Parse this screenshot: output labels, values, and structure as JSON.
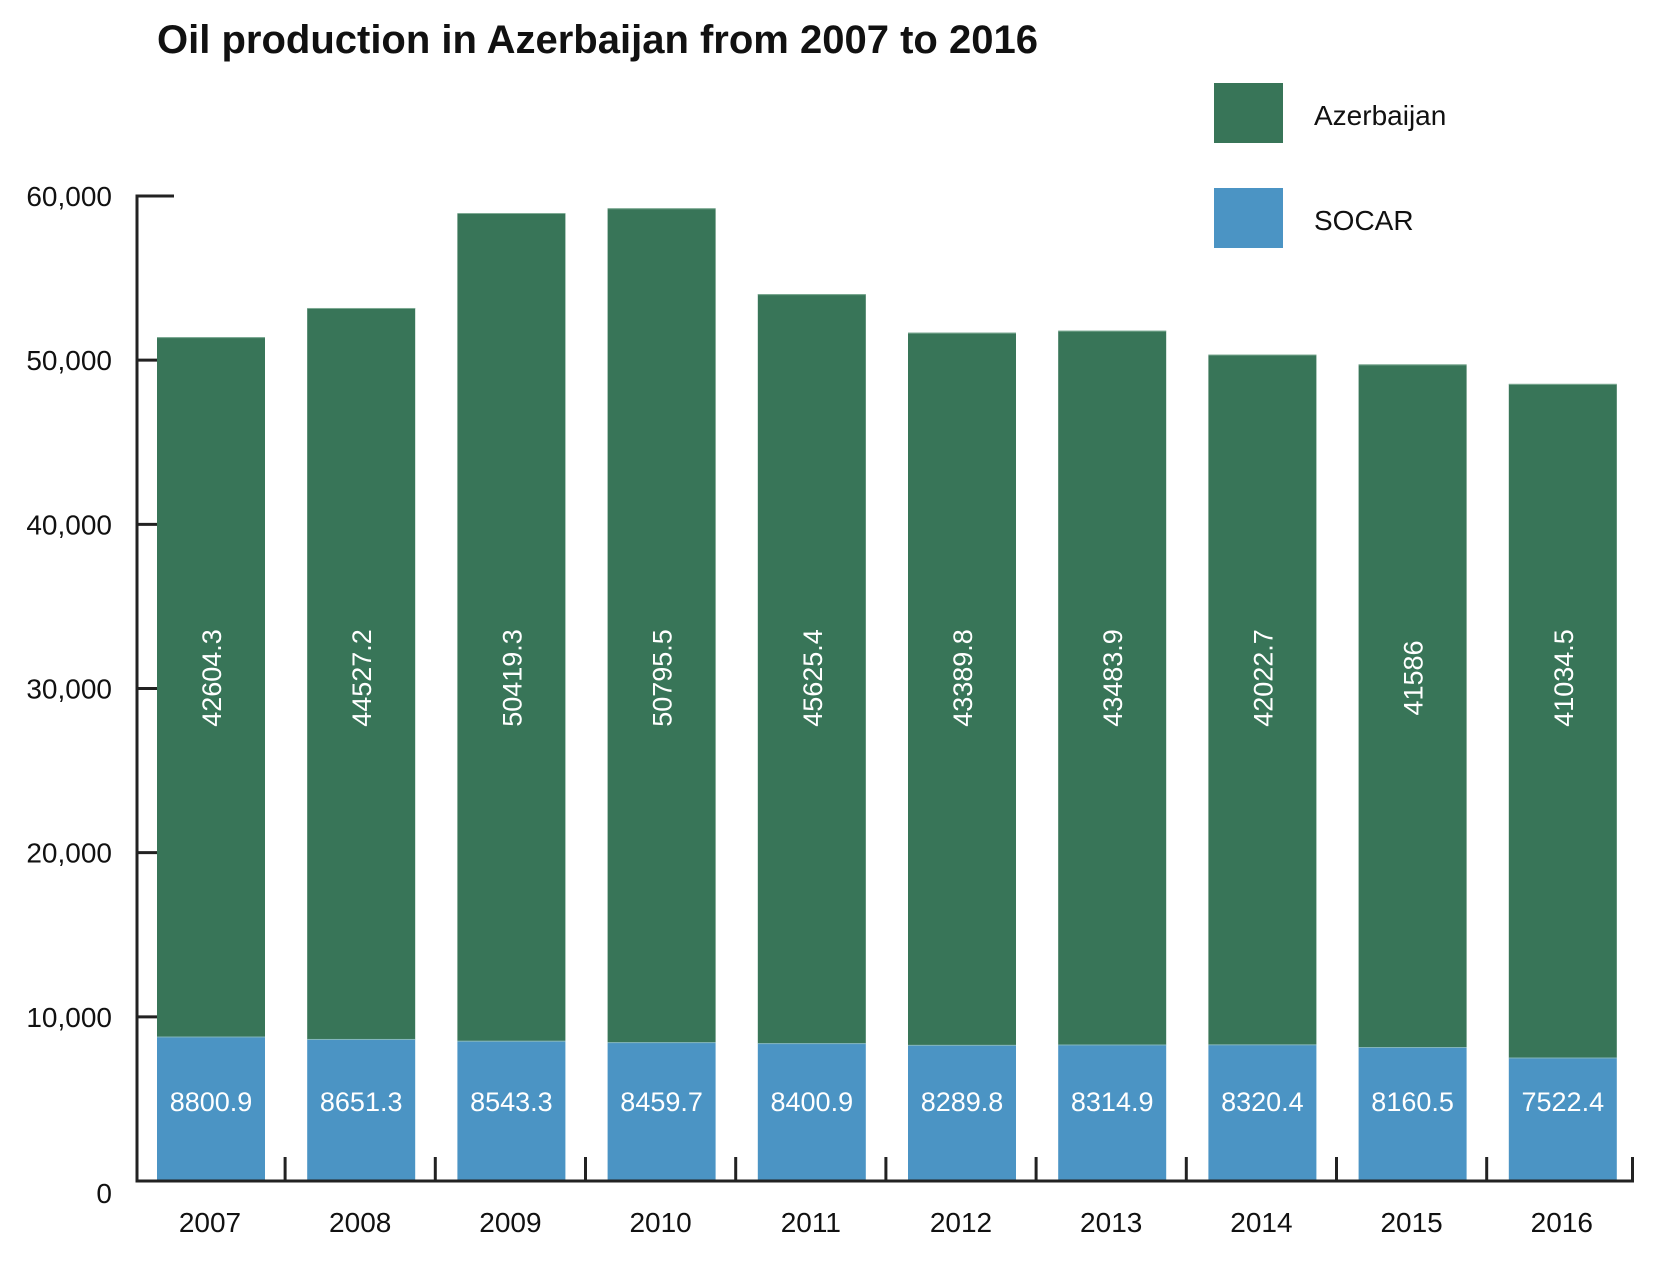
{
  "chart_data": {
    "type": "bar",
    "stacked": true,
    "title": "Oil production in Azerbaijan from 2007 to 2016",
    "xlabel": "",
    "ylabel": "",
    "categories": [
      "2007",
      "2008",
      "2009",
      "2010",
      "2011",
      "2012",
      "2013",
      "2014",
      "2015",
      "2016"
    ],
    "series": [
      {
        "name": "SOCAR",
        "color": "#4b94c4",
        "values": [
          8800.9,
          8651.3,
          8543.3,
          8459.7,
          8400.9,
          8289.8,
          8314.9,
          8320.4,
          8160.5,
          7522.4
        ],
        "labels": [
          "8800.9",
          "8651.3",
          "8543.3",
          "8459.7",
          "8400.9",
          "8289.8",
          "8314.9",
          "8320.4",
          "8160.5",
          "7522.4"
        ]
      },
      {
        "name": "Azerbaijan",
        "color": "#387558",
        "values": [
          42604.3,
          44527.2,
          50419.3,
          50795.5,
          45625.4,
          43389.8,
          43483.9,
          42022.7,
          41586,
          41034.5
        ],
        "labels": [
          "42604.3",
          "44527.2",
          "50419.3",
          "50795.5",
          "45625.4",
          "43389.8",
          "43483.9",
          "42022.7",
          "41586",
          "41034.5"
        ]
      }
    ],
    "ylim": [
      0,
      60000
    ],
    "yticks": [
      0,
      10000,
      20000,
      30000,
      40000,
      50000,
      60000
    ],
    "ytick_labels": [
      "0",
      "10,000",
      "20,000",
      "30,000",
      "40,000",
      "50,000",
      "60,000"
    ],
    "grid": false,
    "legend": {
      "position": "top-right",
      "entries": [
        {
          "name": "Azerbaijan",
          "color": "#387558"
        },
        {
          "name": "SOCAR",
          "color": "#4b94c4"
        }
      ]
    },
    "axis_color": "#222222"
  }
}
